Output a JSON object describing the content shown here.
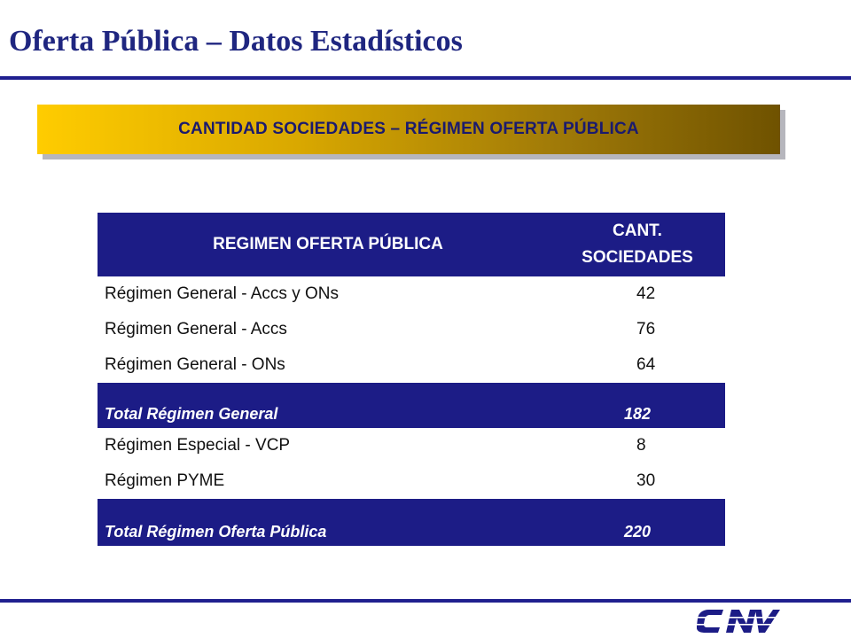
{
  "slide": {
    "title": "Oferta Pública – Datos Estadísticos",
    "banner": "CANTIDAD SOCIEDADES – RÉGIMEN OFERTA PÚBLICA"
  },
  "table": {
    "header": {
      "col1": "REGIMEN OFERTA PÚBLICA",
      "col2_line1": "CANT.",
      "col2_line2": "SOCIEDADES"
    },
    "rows": [
      {
        "label": "Régimen General - Accs y ONs",
        "value": "42"
      },
      {
        "label": "Régimen General - Accs",
        "value": "76"
      },
      {
        "label": "Régimen General - ONs",
        "value": "64"
      },
      {
        "label": "Total Régimen General",
        "value": "182",
        "total": true
      },
      {
        "label": "Régimen Especial - VCP",
        "value": "8"
      },
      {
        "label": "Régimen PYME",
        "value": "30"
      },
      {
        "label": "Total Régimen Oferta Pública",
        "value": "220",
        "total": true
      }
    ]
  },
  "logo": {
    "icon": "cnv-logo-icon",
    "text": "CNV"
  },
  "colors": {
    "primary": "#1c1c86",
    "title": "#1f2680",
    "banner_start": "#ffcc00",
    "banner_end": "#6f5200"
  }
}
